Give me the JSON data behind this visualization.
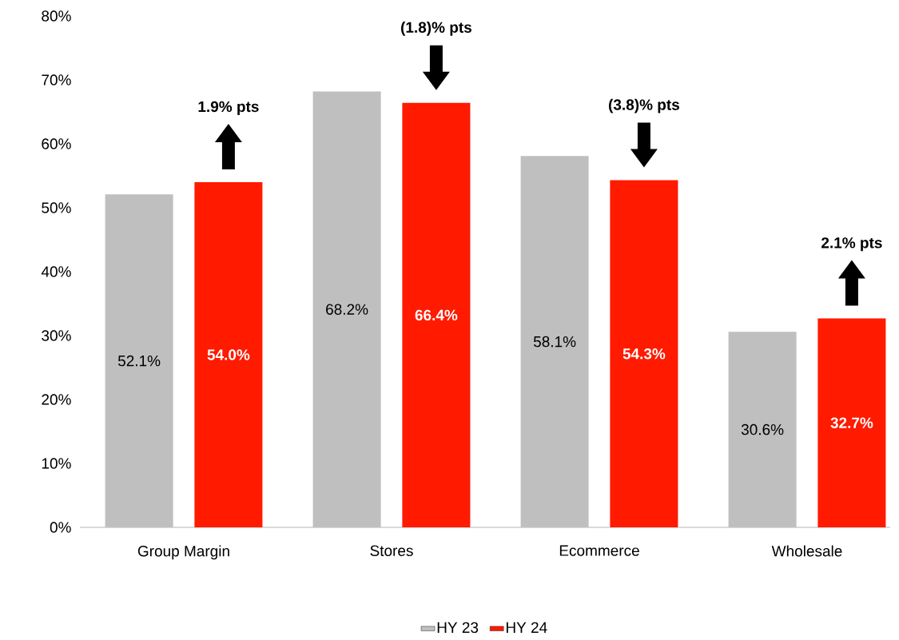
{
  "chart_data": {
    "type": "bar",
    "categories": [
      "Group Margin",
      "Stores",
      "Ecommerce",
      "Wholesale"
    ],
    "series": [
      {
        "name": "HY 23",
        "color": "#bfbfbf",
        "values": [
          52.1,
          68.2,
          58.1,
          30.6
        ],
        "value_labels": [
          "52.1%",
          "68.2%",
          "58.1%",
          "30.6%"
        ]
      },
      {
        "name": "HY 24",
        "color": "#ff1a00",
        "values": [
          54.0,
          66.4,
          54.3,
          32.7
        ],
        "value_labels": [
          "54.0%",
          "66.4%",
          "54.3%",
          "32.7%"
        ]
      }
    ],
    "ylim": [
      0,
      80
    ],
    "yticks": [
      {
        "value": 0,
        "label": "0%"
      },
      {
        "value": 10,
        "label": "10%"
      },
      {
        "value": 20,
        "label": "20%"
      },
      {
        "value": 30,
        "label": "30%"
      },
      {
        "value": 40,
        "label": "40%"
      },
      {
        "value": 50,
        "label": "50%"
      },
      {
        "value": 60,
        "label": "60%"
      },
      {
        "value": 70,
        "label": "70%"
      },
      {
        "value": 80,
        "label": "80%"
      }
    ],
    "annotations": [
      "1.9% pts",
      "(1.8)% pts",
      "(3.8)% pts",
      "2.1% pts"
    ],
    "legend": "bottom"
  }
}
